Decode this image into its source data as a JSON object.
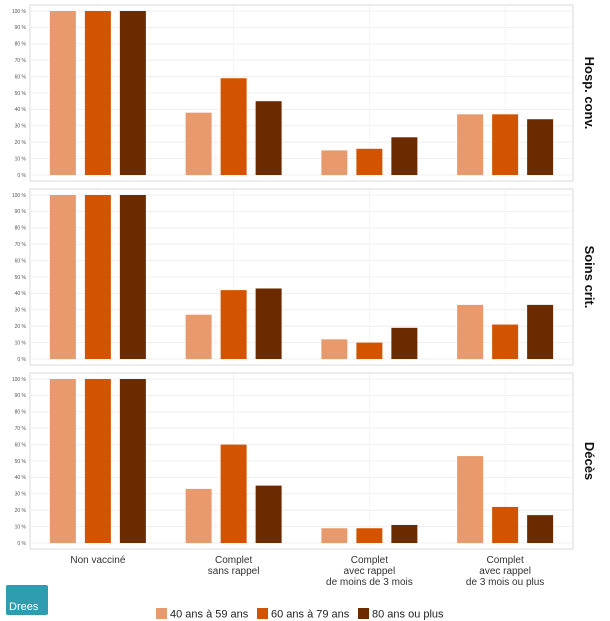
{
  "chart_data": {
    "type": "bar",
    "categories": [
      [
        "Non vacciné"
      ],
      [
        "Complet",
        "sans rappel"
      ],
      [
        "Complet",
        "avec rappel",
        "de moins de 3 mois"
      ],
      [
        "Complet",
        "avec rappel",
        "de 3 mois ou plus"
      ]
    ],
    "y_ticks": [
      "0 %",
      "10 %",
      "20 %",
      "30 %",
      "40 %",
      "50 %",
      "60 %",
      "70 %",
      "80 %",
      "90 %",
      "100 %"
    ],
    "ylim": [
      0,
      100
    ],
    "grid": true,
    "legend_position": "bottom",
    "series_meta": [
      {
        "name": "40 ans à 59 ans",
        "color": "#e89a6d"
      },
      {
        "name": "60 ans à 79 ans",
        "color": "#d35400"
      },
      {
        "name": "80 ans ou plus",
        "color": "#6b2a00"
      }
    ],
    "facets": [
      {
        "label": "Hosp. conv.",
        "values": [
          [
            100,
            38,
            15,
            37
          ],
          [
            100,
            59,
            16,
            37
          ],
          [
            100,
            45,
            23,
            34
          ]
        ]
      },
      {
        "label": "Soins crit.",
        "values": [
          [
            100,
            27,
            12,
            33
          ],
          [
            100,
            42,
            10,
            21
          ],
          [
            100,
            43,
            19,
            33
          ]
        ]
      },
      {
        "label": "Décès",
        "values": [
          [
            100,
            33,
            9,
            53
          ],
          [
            100,
            60,
            9,
            22
          ],
          [
            100,
            35,
            11,
            17
          ]
        ]
      }
    ]
  },
  "logo": {
    "text": "Drees"
  }
}
